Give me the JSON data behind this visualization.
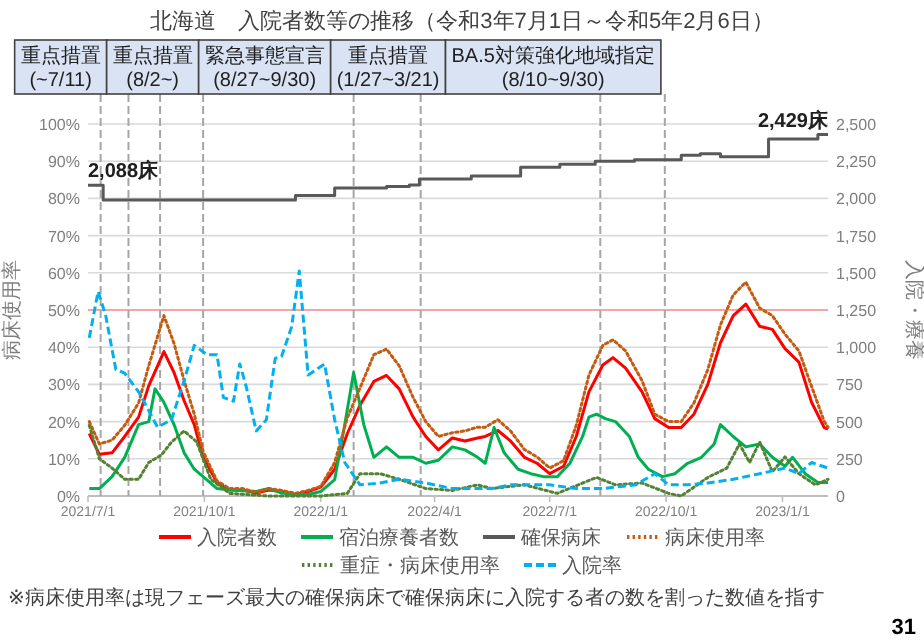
{
  "chart_data": {
    "type": "line",
    "title": "北海道　入院者数等の推移（令和3年7月1日～令和5年2月6日）",
    "ylabel": "病床使用率",
    "y2label": "入院・療養",
    "xlim": [
      "2021-07-01",
      "2023-02-06"
    ],
    "ylim": [
      0,
      100
    ],
    "yticks": [
      {
        "value": 0,
        "label": "0%"
      },
      {
        "value": 10,
        "label": "10%"
      },
      {
        "value": 20,
        "label": "20%"
      },
      {
        "value": 30,
        "label": "30%"
      },
      {
        "value": 40,
        "label": "40%"
      },
      {
        "value": 50,
        "label": "50%"
      },
      {
        "value": 60,
        "label": "60%"
      },
      {
        "value": 70,
        "label": "70%"
      },
      {
        "value": 80,
        "label": "80%"
      },
      {
        "value": 90,
        "label": "90%"
      },
      {
        "value": 100,
        "label": "100%"
      }
    ],
    "y2lim": [
      0,
      2500
    ],
    "y2ticks": [
      0,
      250,
      500,
      750,
      {
        "value": 1000,
        "label": "1,000"
      },
      {
        "value": 1250,
        "label": "1,250"
      },
      {
        "value": 1500,
        "label": "1,500"
      },
      {
        "value": 1750,
        "label": "1,750"
      },
      {
        "value": 2000,
        "label": "2,000"
      },
      {
        "value": 2250,
        "label": "2,250"
      },
      {
        "value": 2500,
        "label": "2,500"
      }
    ],
    "xticks": [
      {
        "value": "2021-07-01",
        "label": "2021/7/1"
      },
      {
        "value": "2021-10-01",
        "label": "2021/10/1"
      },
      {
        "value": "2022-01-01",
        "label": "2022/1/1"
      },
      {
        "value": "2022-04-01",
        "label": "2022/4/1"
      },
      {
        "value": "2022-07-01",
        "label": "2022/7/1"
      },
      {
        "value": "2022-10-01",
        "label": "2022/10/1"
      },
      {
        "value": "2023-01-01",
        "label": "2023/1/1"
      }
    ],
    "grid": "y",
    "legend": "bottom",
    "series": [
      {
        "name": "入院者数",
        "color": "#ff0000",
        "type": "line",
        "axis": "y2",
        "line_style": "solid",
        "x": [
          "2021-07-02",
          "2021-07-10",
          "2021-07-20",
          "2021-07-30",
          "2021-08-10",
          "2021-08-18",
          "2021-08-30",
          "2021-09-07",
          "2021-09-15",
          "2021-09-23",
          "2021-09-30",
          "2021-10-11",
          "2021-10-21",
          "2021-10-31",
          "2021-11-11",
          "2021-11-21",
          "2021-12-01",
          "2021-12-12",
          "2021-12-22",
          "2022-01-01",
          "2022-01-12",
          "2022-01-22",
          "2022-02-01",
          "2022-02-12",
          "2022-02-22",
          "2022-03-04",
          "2022-03-15",
          "2022-03-25",
          "2022-04-04",
          "2022-04-15",
          "2022-04-25",
          "2022-05-05",
          "2022-05-11",
          "2022-05-21",
          "2022-05-31",
          "2022-06-11",
          "2022-06-21",
          "2022-07-01",
          "2022-07-12",
          "2022-07-22",
          "2022-08-01",
          "2022-08-12",
          "2022-08-20",
          "2022-08-30",
          "2022-09-12",
          "2022-09-22",
          "2022-10-03",
          "2022-10-13",
          "2022-10-23",
          "2022-11-03",
          "2022-11-13",
          "2022-11-23",
          "2022-12-03",
          "2022-12-14",
          "2022-12-24",
          "2023-01-03",
          "2023-01-14",
          "2023-01-24",
          "2023-02-03",
          "2023-02-06"
        ],
        "values": [
          420,
          280,
          290,
          400,
          530,
          740,
          970,
          830,
          640,
          480,
          260,
          90,
          40,
          40,
          20,
          40,
          30,
          10,
          30,
          60,
          180,
          420,
          610,
          770,
          810,
          720,
          530,
          400,
          310,
          390,
          370,
          390,
          400,
          440,
          370,
          260,
          220,
          150,
          200,
          400,
          700,
          880,
          930,
          860,
          700,
          520,
          460,
          460,
          550,
          750,
          1030,
          1210,
          1290,
          1140,
          1120,
          990,
          900,
          630,
          460,
          450
        ]
      },
      {
        "name": "宿泊療養者数",
        "color": "#00b050",
        "type": "line",
        "axis": "y2",
        "line_style": "solid",
        "x": [
          "2021-07-02",
          "2021-07-10",
          "2021-07-20",
          "2021-07-30",
          "2021-08-10",
          "2021-08-18",
          "2021-08-23",
          "2021-08-30",
          "2021-09-07",
          "2021-09-15",
          "2021-09-23",
          "2021-09-30",
          "2021-10-11",
          "2021-10-21",
          "2021-11-11",
          "2021-11-21",
          "2021-12-01",
          "2021-12-12",
          "2021-12-22",
          "2022-01-01",
          "2022-01-12",
          "2022-01-20",
          "2022-01-27",
          "2022-02-04",
          "2022-02-12",
          "2022-02-22",
          "2022-03-04",
          "2022-03-15",
          "2022-03-25",
          "2022-04-04",
          "2022-04-15",
          "2022-04-25",
          "2022-05-05",
          "2022-05-11",
          "2022-05-18",
          "2022-05-26",
          "2022-06-06",
          "2022-06-16",
          "2022-06-26",
          "2022-07-07",
          "2022-07-17",
          "2022-07-27",
          "2022-08-01",
          "2022-08-07",
          "2022-08-14",
          "2022-08-22",
          "2022-09-02",
          "2022-09-09",
          "2022-09-17",
          "2022-09-28",
          "2022-10-08",
          "2022-10-18",
          "2022-10-29",
          "2022-11-08",
          "2022-11-13",
          "2022-11-23",
          "2022-12-03",
          "2022-12-14",
          "2022-12-24",
          "2023-01-03",
          "2023-01-09",
          "2023-01-19",
          "2023-01-29",
          "2023-02-06"
        ],
        "values": [
          50,
          50,
          130,
          260,
          480,
          500,
          720,
          630,
          480,
          290,
          180,
          130,
          50,
          40,
          30,
          50,
          20,
          10,
          10,
          30,
          110,
          480,
          830,
          480,
          260,
          330,
          260,
          260,
          220,
          240,
          330,
          310,
          260,
          220,
          460,
          290,
          180,
          150,
          130,
          130,
          220,
          400,
          530,
          550,
          520,
          500,
          400,
          260,
          180,
          130,
          150,
          220,
          260,
          350,
          480,
          400,
          330,
          350,
          260,
          200,
          260,
          150,
          90,
          90
        ]
      },
      {
        "name": "確保病床",
        "color": "#595959",
        "type": "step",
        "axis": "y2",
        "line_style": "solid",
        "x": [
          "2021-07-01",
          "2021-07-13",
          "2021-09-30",
          "2021-12-12",
          "2022-01-12",
          "2022-02-22",
          "2022-03-12",
          "2022-03-20",
          "2022-04-30",
          "2022-06-08",
          "2022-07-09",
          "2022-08-06",
          "2022-09-06",
          "2022-10-13",
          "2022-10-28",
          "2022-11-13",
          "2022-12-21",
          "2023-01-29",
          "2023-02-06"
        ],
        "values": [
          2088,
          1990,
          1990,
          2020,
          2070,
          2080,
          2090,
          2130,
          2150,
          2210,
          2230,
          2250,
          2260,
          2290,
          2300,
          2280,
          2400,
          2429,
          2429
        ],
        "value_labels": [
          "2,088床",
          null,
          null,
          null,
          null,
          null,
          null,
          null,
          null,
          null,
          null,
          null,
          null,
          null,
          null,
          null,
          null,
          null,
          "2,429床"
        ]
      },
      {
        "name": "病床使用率",
        "color": "#c55a11",
        "type": "line",
        "line_style": "dotted",
        "x": [
          "2021-07-02",
          "2021-07-10",
          "2021-07-20",
          "2021-07-30",
          "2021-08-10",
          "2021-08-18",
          "2021-08-30",
          "2021-09-07",
          "2021-09-15",
          "2021-09-23",
          "2021-09-30",
          "2021-10-11",
          "2021-10-21",
          "2021-10-31",
          "2021-11-11",
          "2021-11-21",
          "2021-12-01",
          "2021-12-12",
          "2021-12-22",
          "2022-01-01",
          "2022-01-12",
          "2022-01-22",
          "2022-02-01",
          "2022-02-12",
          "2022-02-22",
          "2022-03-04",
          "2022-03-15",
          "2022-03-25",
          "2022-04-04",
          "2022-04-15",
          "2022-04-25",
          "2022-05-05",
          "2022-05-11",
          "2022-05-21",
          "2022-05-31",
          "2022-06-11",
          "2022-06-21",
          "2022-07-01",
          "2022-07-12",
          "2022-07-22",
          "2022-08-01",
          "2022-08-12",
          "2022-08-20",
          "2022-08-30",
          "2022-09-12",
          "2022-09-22",
          "2022-10-03",
          "2022-10-13",
          "2022-10-23",
          "2022-11-03",
          "2022-11-13",
          "2022-11-23",
          "2022-12-03",
          "2022-12-14",
          "2022-12-24",
          "2023-01-03",
          "2023-01-14",
          "2023-01-24",
          "2023-02-03",
          "2023-02-06"
        ],
        "values": [
          20,
          14,
          15,
          19,
          25,
          35,
          48.5,
          41,
          31,
          22,
          12,
          4,
          2,
          2,
          1,
          2,
          1.5,
          0.7,
          1.5,
          2.6,
          9,
          21,
          29,
          38,
          39.5,
          35,
          26.5,
          20,
          16,
          17,
          17.5,
          18.5,
          18.5,
          20.5,
          17.5,
          12.5,
          10.5,
          7.5,
          9.5,
          19,
          32.5,
          40.5,
          42,
          39,
          31,
          22,
          20,
          20,
          25,
          34,
          46,
          54,
          57.5,
          50.5,
          48.5,
          43.5,
          39,
          29.5,
          20,
          18.5
        ]
      },
      {
        "name": "重症・病床使用率",
        "color": "#548235",
        "type": "line",
        "line_style": "dotted",
        "x": [
          "2021-07-02",
          "2021-07-10",
          "2021-07-20",
          "2021-07-30",
          "2021-08-10",
          "2021-08-18",
          "2021-08-28",
          "2021-09-05",
          "2021-09-15",
          "2021-09-25",
          "2021-10-06",
          "2021-10-21",
          "2021-11-21",
          "2022-01-01",
          "2022-01-22",
          "2022-02-01",
          "2022-02-17",
          "2022-03-04",
          "2022-03-25",
          "2022-04-15",
          "2022-05-05",
          "2022-05-16",
          "2022-06-11",
          "2022-07-07",
          "2022-08-07",
          "2022-08-22",
          "2022-09-12",
          "2022-10-03",
          "2022-10-13",
          "2022-11-03",
          "2022-11-18",
          "2022-11-28",
          "2022-12-06",
          "2022-12-14",
          "2022-12-24",
          "2023-01-03",
          "2023-01-14",
          "2023-01-27",
          "2023-02-06"
        ],
        "values": [
          19,
          10,
          7.5,
          4.5,
          4.5,
          9,
          11,
          14.5,
          17.5,
          14.5,
          4.5,
          0.7,
          0,
          0,
          0.7,
          6,
          6,
          4.5,
          2,
          1.5,
          3,
          2,
          3,
          0.7,
          5,
          3,
          3.5,
          0.7,
          0,
          5,
          7.5,
          14,
          9,
          14.5,
          6.5,
          10.5,
          6,
          3,
          4.5
        ]
      },
      {
        "name": "入院率",
        "color": "#00b0f0",
        "type": "line",
        "line_style": "dashed",
        "x": [
          "2021-07-02",
          "2021-07-09",
          "2021-07-15",
          "2021-07-23",
          "2021-07-30",
          "2021-08-10",
          "2021-08-25",
          "2021-09-05",
          "2021-09-15",
          "2021-09-23",
          "2021-10-03",
          "2021-10-11",
          "2021-10-16",
          "2021-10-24",
          "2021-10-29",
          "2021-11-03",
          "2021-11-11",
          "2021-11-19",
          "2021-11-26",
          "2021-12-01",
          "2021-12-09",
          "2021-12-15",
          "2021-12-22",
          "2022-01-04",
          "2022-01-12",
          "2022-01-20",
          "2022-02-01",
          "2022-02-17",
          "2022-03-04",
          "2022-03-25",
          "2022-04-15",
          "2022-05-05",
          "2022-05-16",
          "2022-05-31",
          "2022-07-01",
          "2022-07-22",
          "2022-08-12",
          "2022-09-07",
          "2022-09-22",
          "2022-10-03",
          "2022-10-18",
          "2022-11-03",
          "2022-11-23",
          "2022-12-14",
          "2023-01-03",
          "2023-01-14",
          "2023-01-24",
          "2023-02-06"
        ],
        "values": [
          42.5,
          55,
          48.5,
          34,
          33,
          28,
          18.5,
          20.5,
          31,
          40.5,
          38,
          38,
          26.5,
          25.5,
          35.5,
          29.5,
          17.5,
          20.5,
          37,
          37.5,
          45.5,
          60.5,
          32.5,
          35.5,
          20.5,
          9,
          3,
          3.5,
          4.5,
          3.5,
          2,
          2,
          2,
          3,
          3,
          2,
          2,
          3,
          6,
          3,
          3,
          3.5,
          4.5,
          6,
          7.5,
          6,
          9,
          7.5
        ]
      }
    ],
    "ref_lines": [
      {
        "axis": "y",
        "value": 50,
        "color": "#f4a6a6"
      },
      {
        "axis": "x",
        "value": "2021-07-11",
        "color": "#a6a6a6",
        "line_style": "dashed",
        "label": "重点措置(~7/11)"
      },
      {
        "axis": "x",
        "value": "2021-08-02",
        "color": "#a6a6a6",
        "line_style": "dashed",
        "label": "重点措置(8/2~)"
      },
      {
        "axis": "x",
        "value": "2021-08-27",
        "color": "#a6a6a6",
        "line_style": "dashed"
      },
      {
        "axis": "x",
        "value": "2021-09-30",
        "color": "#a6a6a6",
        "line_style": "dashed",
        "label": "緊急事態宣言(8/27~9/30)"
      },
      {
        "axis": "x",
        "value": "2022-01-27",
        "color": "#a6a6a6",
        "line_style": "dashed",
        "label": "重点措置(1/27~3/21)"
      },
      {
        "axis": "x",
        "value": "2022-03-21",
        "color": "#a6a6a6",
        "line_style": "dashed"
      },
      {
        "axis": "x",
        "value": "2022-08-10",
        "color": "#a6a6a6",
        "line_style": "dashed",
        "label": "BA.5対策強化地域指定(8/10~9/30)"
      },
      {
        "axis": "x",
        "value": "2022-09-30",
        "color": "#a6a6a6",
        "line_style": "dashed"
      }
    ],
    "annotations": [
      "※病床使用率は現フェーズ最大の確保病床で確保病床に入院する者の数を割った数値を指す",
      "31"
    ]
  }
}
